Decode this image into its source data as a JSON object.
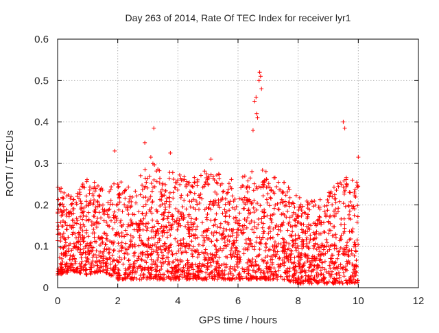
{
  "chart_data": {
    "type": "scatter",
    "title": "Day 263 of 2014, Rate Of TEC Index for receiver lyr1",
    "xlabel": "GPS time / hours",
    "ylabel": "ROTI / TECUs",
    "xlim": [
      0,
      12
    ],
    "ylim": [
      0,
      0.6
    ],
    "xticks": [
      0,
      2,
      4,
      6,
      8,
      10,
      12
    ],
    "yticks": [
      0,
      0.1,
      0.2,
      0.3,
      0.4,
      0.5,
      0.6
    ],
    "xtick_labels": [
      "0",
      "2",
      "4",
      "6",
      "8",
      "10",
      "12"
    ],
    "ytick_labels": [
      "0",
      "0.1",
      "0.2",
      "0.3",
      "0.4",
      "0.5",
      "0.6"
    ],
    "grid": true,
    "marker": "+",
    "series": [
      {
        "name": "ROTI",
        "color": "#ff0000",
        "envelope": {
          "x": [
            0,
            0.5,
            1,
            1.5,
            2,
            2.5,
            3,
            3.5,
            4,
            4.5,
            5,
            5.5,
            6,
            6.5,
            7,
            7.5,
            8,
            8.5,
            9,
            9.5,
            10
          ],
          "low": [
            0.03,
            0.04,
            0.03,
            0.04,
            0.02,
            0.02,
            0.02,
            0.02,
            0.02,
            0.02,
            0.02,
            0.02,
            0.02,
            0.02,
            0.02,
            0.02,
            0.01,
            0.01,
            0.01,
            0.01,
            0.01
          ],
          "high": [
            0.25,
            0.22,
            0.27,
            0.24,
            0.26,
            0.24,
            0.31,
            0.28,
            0.28,
            0.27,
            0.29,
            0.27,
            0.26,
            0.29,
            0.28,
            0.26,
            0.22,
            0.21,
            0.23,
            0.27,
            0.27
          ]
        },
        "peaks": [
          {
            "x": 6.5,
            "y": 0.38
          },
          {
            "x": 6.55,
            "y": 0.45
          },
          {
            "x": 6.6,
            "y": 0.46
          },
          {
            "x": 6.62,
            "y": 0.42
          },
          {
            "x": 6.7,
            "y": 0.5
          },
          {
            "x": 6.72,
            "y": 0.52
          },
          {
            "x": 6.75,
            "y": 0.51
          },
          {
            "x": 6.78,
            "y": 0.48
          },
          {
            "x": 6.65,
            "y": 0.41
          },
          {
            "x": 3.2,
            "y": 0.385
          },
          {
            "x": 2.9,
            "y": 0.35
          },
          {
            "x": 9.5,
            "y": 0.4
          },
          {
            "x": 9.55,
            "y": 0.385
          },
          {
            "x": 1.9,
            "y": 0.33
          },
          {
            "x": 3.75,
            "y": 0.325
          },
          {
            "x": 10.0,
            "y": 0.315
          },
          {
            "x": 5.1,
            "y": 0.31
          },
          {
            "x": 3.1,
            "y": 0.315
          }
        ]
      }
    ]
  }
}
